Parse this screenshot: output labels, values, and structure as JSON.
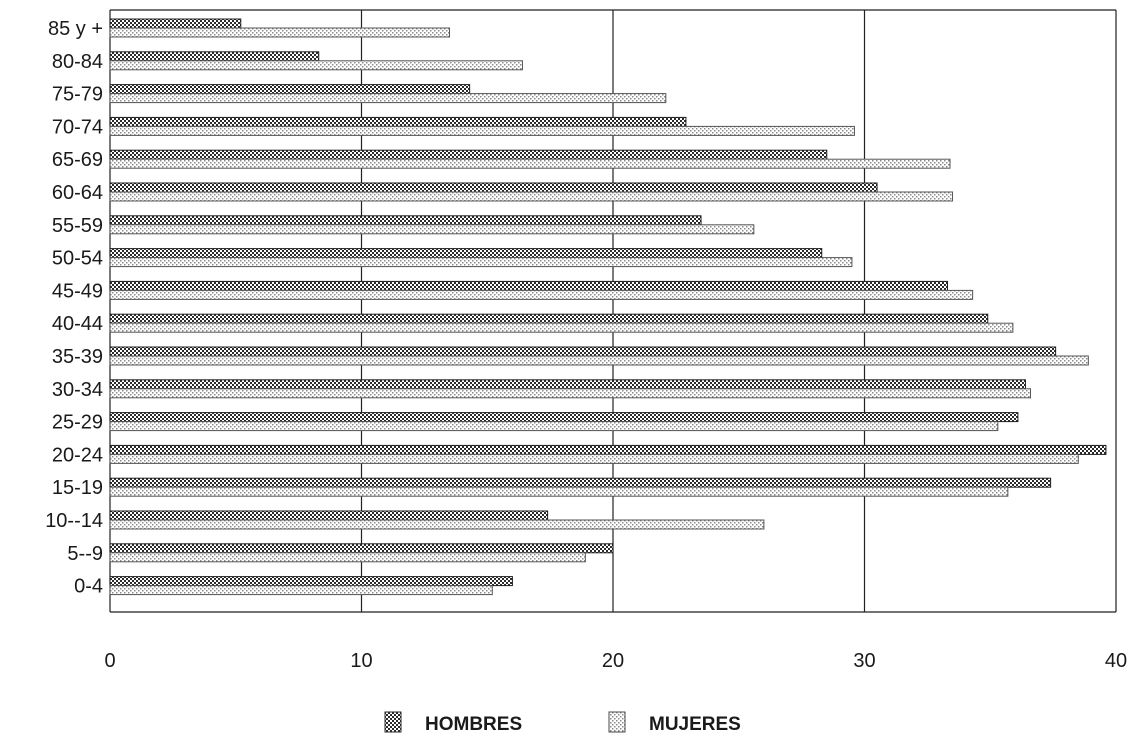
{
  "chart_data": {
    "type": "bar",
    "orientation": "horizontal",
    "categories": [
      "85 y +",
      "80-84",
      "75-79",
      "70-74",
      "65-69",
      "60-64",
      "55-59",
      "50-54",
      "45-49",
      "40-44",
      "35-39",
      "30-34",
      "25-29",
      "20-24",
      "15-19",
      "10--14",
      "5--9",
      "0-4"
    ],
    "series": [
      {
        "name": "HOMBRES",
        "values": [
          5.2,
          8.3,
          14.3,
          22.9,
          28.5,
          30.5,
          23.5,
          28.3,
          33.3,
          34.9,
          37.6,
          36.4,
          36.1,
          39.6,
          37.4,
          17.4,
          20.0,
          16.0
        ]
      },
      {
        "name": "MUJERES",
        "values": [
          13.5,
          16.4,
          22.1,
          29.6,
          33.4,
          33.5,
          25.6,
          29.5,
          34.3,
          35.9,
          38.9,
          36.6,
          35.3,
          38.5,
          35.7,
          26.0,
          18.9,
          15.2
        ]
      }
    ],
    "xlim": [
      0,
      40
    ],
    "xticks": [
      "0",
      "10",
      "20",
      "30",
      "40"
    ],
    "grid": "vertical",
    "legend": "bottom-center",
    "colors": {
      "hombres": "#2b2b2b",
      "mujeres": "#9a9a9a"
    },
    "title": "",
    "xlabel": "",
    "ylabel": ""
  }
}
